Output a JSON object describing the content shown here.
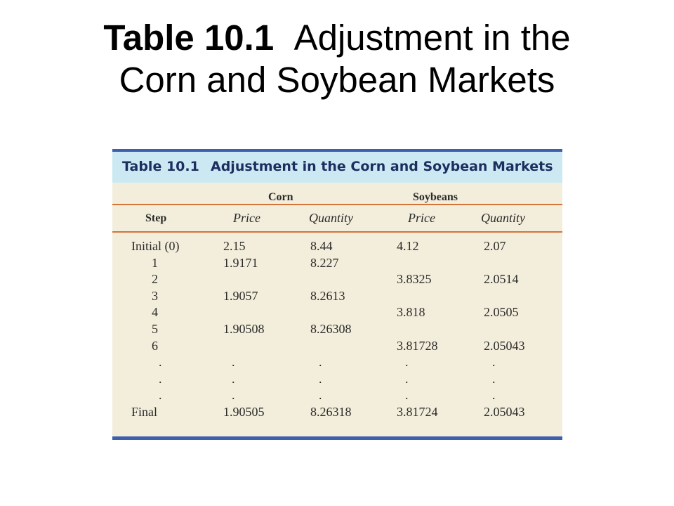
{
  "slide": {
    "title_lead": "Table 10.1",
    "title_rest": "Adjustment in the",
    "title_line2": "Corn and Soybean Markets"
  },
  "table": {
    "number": "Table 10.1",
    "name": "Adjustment in the Corn and Soybean Markets",
    "groups": {
      "corn": "Corn",
      "soybeans": "Soybeans"
    },
    "columns": [
      "Step",
      "Price",
      "Quantity",
      "Price",
      "Quantity"
    ],
    "rows": [
      [
        "Initial (0)",
        "2.15",
        "8.44",
        "4.12",
        "2.07"
      ],
      [
        "1",
        "1.9171",
        "8.227",
        "",
        ""
      ],
      [
        "2",
        "",
        "",
        "3.8325",
        "2.0514"
      ],
      [
        "3",
        "1.9057",
        "8.2613",
        "",
        ""
      ],
      [
        "4",
        "",
        "",
        "3.818",
        "2.0505"
      ],
      [
        "5",
        "1.90508",
        "8.26308",
        "",
        ""
      ],
      [
        "6",
        "",
        "",
        "3.81728",
        "2.05043"
      ],
      [
        ".",
        ".",
        ".",
        ".",
        "."
      ],
      [
        ".",
        ".",
        ".",
        ".",
        "."
      ],
      [
        ".",
        ".",
        ".",
        ".",
        "."
      ],
      [
        "Final",
        "1.90505",
        "8.26318",
        "3.81724",
        "2.05043"
      ]
    ]
  }
}
